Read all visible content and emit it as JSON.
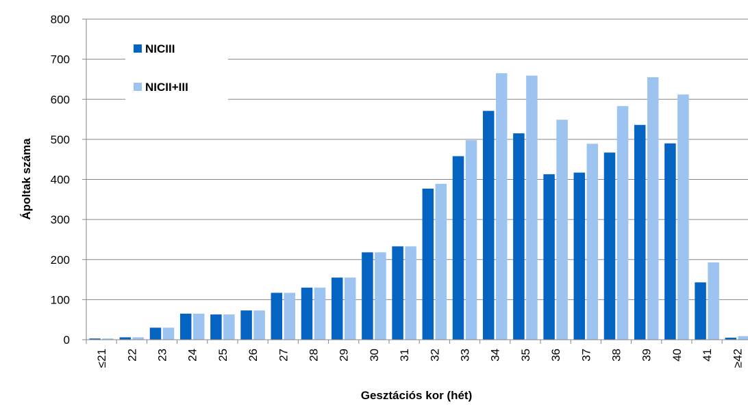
{
  "chart_data": {
    "type": "bar",
    "title": "",
    "xlabel": "Gesztációs kor (hét)",
    "ylabel": "Ápoltak száma",
    "ylim": [
      0,
      800
    ],
    "yticks": [
      0,
      100,
      200,
      300,
      400,
      500,
      600,
      700,
      800
    ],
    "grid": true,
    "legend_position": "top-left",
    "categories": [
      "≤21",
      "22",
      "23",
      "24",
      "25",
      "26",
      "27",
      "28",
      "29",
      "30",
      "31",
      "32",
      "33",
      "34",
      "35",
      "36",
      "37",
      "38",
      "39",
      "40",
      "41",
      "≥42"
    ],
    "series": [
      {
        "name": "NICIII",
        "color": "#0563c1",
        "values": [
          3,
          6,
          30,
          65,
          63,
          73,
          117,
          130,
          155,
          218,
          233,
          377,
          458,
          571,
          515,
          413,
          417,
          467,
          536,
          490,
          143,
          5
        ]
      },
      {
        "name": "NICII+III",
        "color": "#9dc3f0",
        "values": [
          3,
          6,
          30,
          65,
          63,
          73,
          117,
          130,
          155,
          218,
          233,
          389,
          498,
          665,
          659,
          549,
          489,
          583,
          655,
          612,
          193,
          9
        ]
      }
    ]
  }
}
